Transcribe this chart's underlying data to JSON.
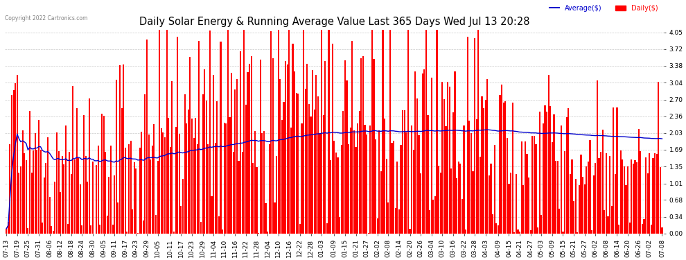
{
  "title": "Daily Solar Energy & Running Average Value Last 365 Days Wed Jul 13 20:28",
  "copyright_text": "Copyright 2022 Cartronics.com",
  "legend_avg": "Average($)",
  "legend_daily": "Daily($)",
  "bar_color": "#ff0000",
  "avg_line_color": "#0000cc",
  "background_color": "#ffffff",
  "plot_bg_color": "#ffffff",
  "yticks": [
    0.0,
    0.34,
    0.68,
    1.01,
    1.35,
    1.69,
    2.03,
    2.36,
    2.7,
    3.04,
    3.38,
    3.72,
    4.05
  ],
  "ylim": [
    0,
    4.15
  ],
  "grid_color": "#bbbbbb",
  "title_fontsize": 10.5,
  "tick_fontsize": 6.5,
  "x_labels": [
    "07-13",
    "07-19",
    "07-25",
    "07-31",
    "08-06",
    "08-12",
    "08-18",
    "08-24",
    "08-30",
    "09-05",
    "09-11",
    "09-17",
    "09-23",
    "09-29",
    "10-05",
    "10-11",
    "10-17",
    "10-23",
    "10-29",
    "11-04",
    "11-10",
    "11-16",
    "11-22",
    "11-28",
    "12-04",
    "12-10",
    "12-16",
    "12-22",
    "12-28",
    "01-03",
    "01-09",
    "01-15",
    "01-21",
    "01-27",
    "02-02",
    "02-08",
    "02-14",
    "02-20",
    "02-26",
    "03-04",
    "03-10",
    "03-16",
    "03-22",
    "03-28",
    "04-03",
    "04-09",
    "04-15",
    "04-21",
    "04-27",
    "05-03",
    "05-09",
    "05-15",
    "05-21",
    "05-27",
    "06-02",
    "06-08",
    "06-14",
    "06-20",
    "06-26",
    "07-02",
    "07-08"
  ]
}
